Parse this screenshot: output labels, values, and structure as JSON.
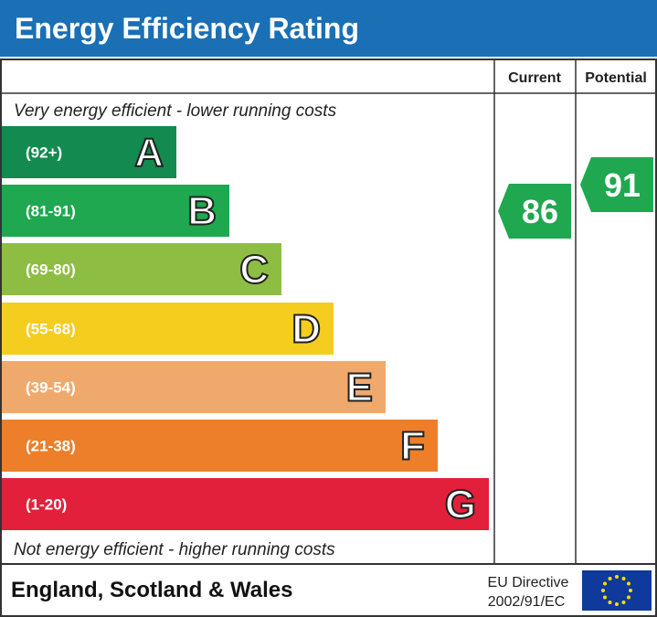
{
  "header": {
    "title": "Energy Efficiency Rating"
  },
  "columns": {
    "current": "Current",
    "potential": "Potential"
  },
  "top_text": "Very energy efficient - lower running costs",
  "bottom_text": "Not energy efficient - higher running costs",
  "bands": [
    {
      "range": "(92+)",
      "letter": "A",
      "color": "#138a4f"
    },
    {
      "range": "(81-91)",
      "letter": "B",
      "color": "#1fa84f"
    },
    {
      "range": "(69-80)",
      "letter": "C",
      "color": "#8dbe43"
    },
    {
      "range": "(55-68)",
      "letter": "D",
      "color": "#f4cd1f"
    },
    {
      "range": "(39-54)",
      "letter": "E",
      "color": "#f0a96c"
    },
    {
      "range": "(21-38)",
      "letter": "F",
      "color": "#ed7f2a"
    },
    {
      "range": "(1-20)",
      "letter": "G",
      "color": "#e3203b"
    }
  ],
  "current": {
    "rating": "86",
    "color": "#1fa84f"
  },
  "potential": {
    "rating": "91",
    "color": "#1fa84f"
  },
  "footer": {
    "region": "England, Scotland & Wales",
    "directive_line1": "EU Directive",
    "directive_line2": "2002/91/EC"
  }
}
